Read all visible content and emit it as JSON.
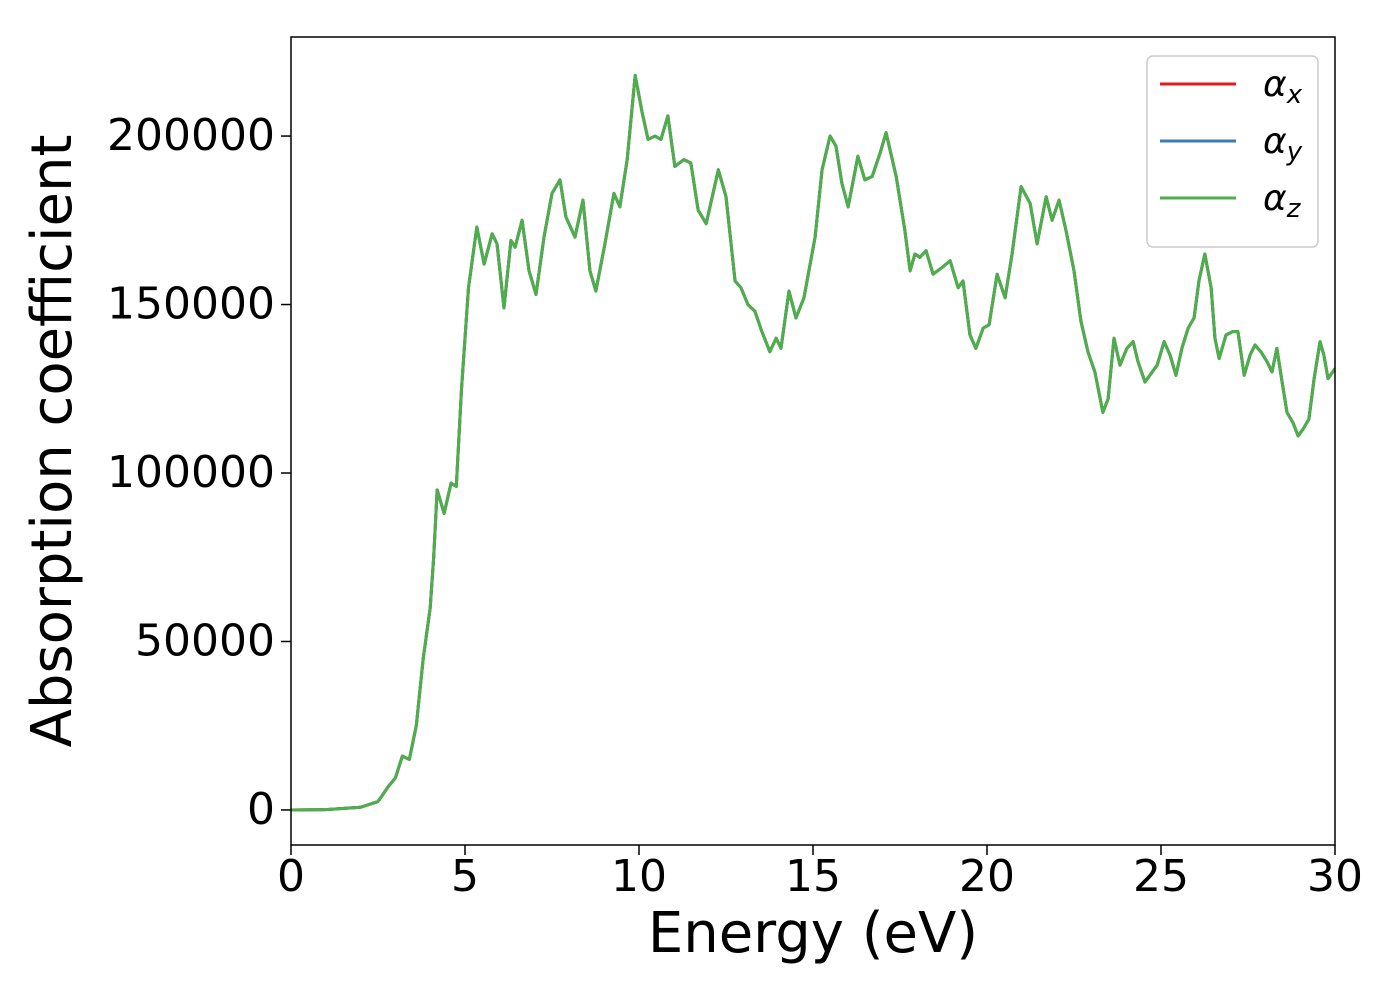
{
  "chart_data": {
    "type": "line",
    "xlabel": "Energy (eV)",
    "ylabel": "Absorption coefficient",
    "xlim": [
      0,
      30
    ],
    "ylim": [
      -10400,
      229400
    ],
    "xticks": [
      0,
      5,
      10,
      15,
      20,
      25,
      30
    ],
    "yticks": [
      0,
      50000,
      100000,
      150000,
      200000
    ],
    "grid": false,
    "legend": "upper right",
    "x": [
      0,
      1,
      2,
      2.5,
      2.8,
      3,
      3.2,
      3.4,
      3.6,
      3.8,
      4,
      4.1,
      4.2,
      4.4,
      4.6,
      4.75,
      4.9,
      5.1,
      5.34,
      5.55,
      5.78,
      5.92,
      6.12,
      6.32,
      6.44,
      6.64,
      6.84,
      7.04,
      7.27,
      7.5,
      7.73,
      7.9,
      8.16,
      8.39,
      8.59,
      8.76,
      9.02,
      9.28,
      9.45,
      9.66,
      9.89,
      10.09,
      10.26,
      10.46,
      10.63,
      10.83,
      11.03,
      11.29,
      11.49,
      11.7,
      11.93,
      12.28,
      12.5,
      12.76,
      12.93,
      13.13,
      13.33,
      13.53,
      13.76,
      13.94,
      14.08,
      14.31,
      14.51,
      14.74,
      15.06,
      15.26,
      15.49,
      15.66,
      15.83,
      16.01,
      16.29,
      16.49,
      16.7,
      16.93,
      17.1,
      17.39,
      17.64,
      17.79,
      17.93,
      18.07,
      18.25,
      18.45,
      18.71,
      18.94,
      19.17,
      19.31,
      19.51,
      19.68,
      19.89,
      20.06,
      20.29,
      20.52,
      20.72,
      20.98,
      21.24,
      21.44,
      21.7,
      21.87,
      22.07,
      22.27,
      22.5,
      22.7,
      22.9,
      23.1,
      23.33,
      23.48,
      23.65,
      23.82,
      24.02,
      24.2,
      24.34,
      24.54,
      24.68,
      24.89,
      25.09,
      25.26,
      25.43,
      25.6,
      25.78,
      25.95,
      26.09,
      26.26,
      26.44,
      26.55,
      26.67,
      26.87,
      27.07,
      27.21,
      27.39,
      27.56,
      27.7,
      27.87,
      28.05,
      28.19,
      28.33,
      28.48,
      28.62,
      28.79,
      28.94,
      29.08,
      29.25,
      29.4,
      29.57,
      29.68,
      29.8,
      30
    ],
    "series": [
      {
        "name": "α_x",
        "color": "#e41a1c",
        "values": [
          0,
          100,
          800,
          2500,
          7000,
          9500,
          16000,
          15000,
          25000,
          45000,
          60000,
          75000,
          95000,
          88000,
          97000,
          96000,
          125000,
          155000,
          173000,
          162000,
          171000,
          168000,
          149000,
          169000,
          167000,
          175000,
          160000,
          153000,
          170000,
          183000,
          187000,
          176000,
          170000,
          181000,
          160000,
          154000,
          168000,
          183000,
          179000,
          193000,
          218000,
          207000,
          199000,
          200000,
          199000,
          206000,
          191000,
          193000,
          192000,
          178000,
          174000,
          190000,
          182000,
          157000,
          155000,
          150000,
          148000,
          142000,
          136000,
          140000,
          137000,
          154000,
          146000,
          152000,
          170000,
          190000,
          200000,
          197000,
          186000,
          179000,
          194000,
          187000,
          188000,
          195000,
          201000,
          188000,
          172000,
          160000,
          165000,
          164000,
          166000,
          159000,
          161000,
          163000,
          155000,
          157000,
          141000,
          137000,
          143000,
          144000,
          159000,
          152000,
          165000,
          185000,
          180000,
          168000,
          182000,
          175000,
          181000,
          172000,
          160000,
          145000,
          136000,
          130000,
          118000,
          122000,
          140000,
          132000,
          137000,
          139000,
          133000,
          127000,
          129000,
          132000,
          139000,
          135000,
          129000,
          137000,
          143000,
          146000,
          157000,
          165000,
          155000,
          140000,
          134000,
          141000,
          142000,
          142000,
          129000,
          135000,
          138000,
          136000,
          133000,
          130000,
          137000,
          127000,
          118000,
          115000,
          111000,
          113000,
          116000,
          128000,
          139000,
          135000,
          128000,
          131000
        ]
      },
      {
        "name": "α_y",
        "color": "#377eb8",
        "values": [
          0,
          100,
          800,
          2500,
          7000,
          9500,
          16000,
          15000,
          25000,
          45000,
          60000,
          75000,
          95000,
          88000,
          97000,
          96000,
          125000,
          155000,
          173000,
          162000,
          171000,
          168000,
          149000,
          169000,
          167000,
          175000,
          160000,
          153000,
          170000,
          183000,
          187000,
          176000,
          170000,
          181000,
          160000,
          154000,
          168000,
          183000,
          179000,
          193000,
          218000,
          207000,
          199000,
          200000,
          199000,
          206000,
          191000,
          193000,
          192000,
          178000,
          174000,
          190000,
          182000,
          157000,
          155000,
          150000,
          148000,
          142000,
          136000,
          140000,
          137000,
          154000,
          146000,
          152000,
          170000,
          190000,
          200000,
          197000,
          186000,
          179000,
          194000,
          187000,
          188000,
          195000,
          201000,
          188000,
          172000,
          160000,
          165000,
          164000,
          166000,
          159000,
          161000,
          163000,
          155000,
          157000,
          141000,
          137000,
          143000,
          144000,
          159000,
          152000,
          165000,
          185000,
          180000,
          168000,
          182000,
          175000,
          181000,
          172000,
          160000,
          145000,
          136000,
          130000,
          118000,
          122000,
          140000,
          132000,
          137000,
          139000,
          133000,
          127000,
          129000,
          132000,
          139000,
          135000,
          129000,
          137000,
          143000,
          146000,
          157000,
          165000,
          155000,
          140000,
          134000,
          141000,
          142000,
          142000,
          129000,
          135000,
          138000,
          136000,
          133000,
          130000,
          137000,
          127000,
          118000,
          115000,
          111000,
          113000,
          116000,
          128000,
          139000,
          135000,
          128000,
          131000
        ]
      },
      {
        "name": "α_z",
        "color": "#4daf4a",
        "values": [
          0,
          100,
          800,
          2500,
          7000,
          9500,
          16000,
          15000,
          25000,
          45000,
          60000,
          75000,
          95000,
          88000,
          97000,
          96000,
          125000,
          155000,
          173000,
          162000,
          171000,
          168000,
          149000,
          169000,
          167000,
          175000,
          160000,
          153000,
          170000,
          183000,
          187000,
          176000,
          170000,
          181000,
          160000,
          154000,
          168000,
          183000,
          179000,
          193000,
          218000,
          207000,
          199000,
          200000,
          199000,
          206000,
          191000,
          193000,
          192000,
          178000,
          174000,
          190000,
          182000,
          157000,
          155000,
          150000,
          148000,
          142000,
          136000,
          140000,
          137000,
          154000,
          146000,
          152000,
          170000,
          190000,
          200000,
          197000,
          186000,
          179000,
          194000,
          187000,
          188000,
          195000,
          201000,
          188000,
          172000,
          160000,
          165000,
          164000,
          166000,
          159000,
          161000,
          163000,
          155000,
          157000,
          141000,
          137000,
          143000,
          144000,
          159000,
          152000,
          165000,
          185000,
          180000,
          168000,
          182000,
          175000,
          181000,
          172000,
          160000,
          145000,
          136000,
          130000,
          118000,
          122000,
          140000,
          132000,
          137000,
          139000,
          133000,
          127000,
          129000,
          132000,
          139000,
          135000,
          129000,
          137000,
          143000,
          146000,
          157000,
          165000,
          155000,
          140000,
          134000,
          141000,
          142000,
          142000,
          129000,
          135000,
          138000,
          136000,
          133000,
          130000,
          137000,
          127000,
          118000,
          115000,
          111000,
          113000,
          116000,
          128000,
          139000,
          135000,
          128000,
          131000
        ]
      }
    ]
  }
}
